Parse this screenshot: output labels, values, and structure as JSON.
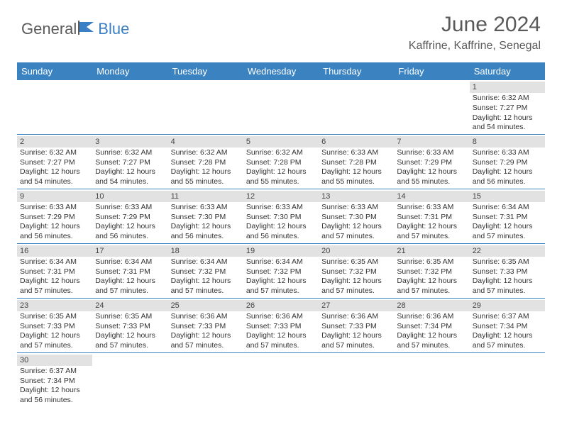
{
  "logo": {
    "part1": "General",
    "part2": "Blue"
  },
  "title": "June 2024",
  "subtitle": "Kaffrine, Kaffrine, Senegal",
  "colors": {
    "header_bg": "#3b83c0",
    "header_text": "#ffffff",
    "daynum_bg": "#e2e2e2",
    "row_border": "#3b83c0",
    "text": "#333333",
    "logo_gray": "#5a5a5a",
    "logo_blue": "#3b7fc4"
  },
  "weekdays": [
    "Sunday",
    "Monday",
    "Tuesday",
    "Wednesday",
    "Thursday",
    "Friday",
    "Saturday"
  ],
  "weeks": [
    [
      {
        "day": "",
        "sunrise": "",
        "sunset": "",
        "daylight": ""
      },
      {
        "day": "",
        "sunrise": "",
        "sunset": "",
        "daylight": ""
      },
      {
        "day": "",
        "sunrise": "",
        "sunset": "",
        "daylight": ""
      },
      {
        "day": "",
        "sunrise": "",
        "sunset": "",
        "daylight": ""
      },
      {
        "day": "",
        "sunrise": "",
        "sunset": "",
        "daylight": ""
      },
      {
        "day": "",
        "sunrise": "",
        "sunset": "",
        "daylight": ""
      },
      {
        "day": "1",
        "sunrise": "Sunrise: 6:32 AM",
        "sunset": "Sunset: 7:27 PM",
        "daylight": "Daylight: 12 hours and 54 minutes."
      }
    ],
    [
      {
        "day": "2",
        "sunrise": "Sunrise: 6:32 AM",
        "sunset": "Sunset: 7:27 PM",
        "daylight": "Daylight: 12 hours and 54 minutes."
      },
      {
        "day": "3",
        "sunrise": "Sunrise: 6:32 AM",
        "sunset": "Sunset: 7:27 PM",
        "daylight": "Daylight: 12 hours and 54 minutes."
      },
      {
        "day": "4",
        "sunrise": "Sunrise: 6:32 AM",
        "sunset": "Sunset: 7:28 PM",
        "daylight": "Daylight: 12 hours and 55 minutes."
      },
      {
        "day": "5",
        "sunrise": "Sunrise: 6:32 AM",
        "sunset": "Sunset: 7:28 PM",
        "daylight": "Daylight: 12 hours and 55 minutes."
      },
      {
        "day": "6",
        "sunrise": "Sunrise: 6:33 AM",
        "sunset": "Sunset: 7:28 PM",
        "daylight": "Daylight: 12 hours and 55 minutes."
      },
      {
        "day": "7",
        "sunrise": "Sunrise: 6:33 AM",
        "sunset": "Sunset: 7:29 PM",
        "daylight": "Daylight: 12 hours and 55 minutes."
      },
      {
        "day": "8",
        "sunrise": "Sunrise: 6:33 AM",
        "sunset": "Sunset: 7:29 PM",
        "daylight": "Daylight: 12 hours and 56 minutes."
      }
    ],
    [
      {
        "day": "9",
        "sunrise": "Sunrise: 6:33 AM",
        "sunset": "Sunset: 7:29 PM",
        "daylight": "Daylight: 12 hours and 56 minutes."
      },
      {
        "day": "10",
        "sunrise": "Sunrise: 6:33 AM",
        "sunset": "Sunset: 7:29 PM",
        "daylight": "Daylight: 12 hours and 56 minutes."
      },
      {
        "day": "11",
        "sunrise": "Sunrise: 6:33 AM",
        "sunset": "Sunset: 7:30 PM",
        "daylight": "Daylight: 12 hours and 56 minutes."
      },
      {
        "day": "12",
        "sunrise": "Sunrise: 6:33 AM",
        "sunset": "Sunset: 7:30 PM",
        "daylight": "Daylight: 12 hours and 56 minutes."
      },
      {
        "day": "13",
        "sunrise": "Sunrise: 6:33 AM",
        "sunset": "Sunset: 7:30 PM",
        "daylight": "Daylight: 12 hours and 57 minutes."
      },
      {
        "day": "14",
        "sunrise": "Sunrise: 6:33 AM",
        "sunset": "Sunset: 7:31 PM",
        "daylight": "Daylight: 12 hours and 57 minutes."
      },
      {
        "day": "15",
        "sunrise": "Sunrise: 6:34 AM",
        "sunset": "Sunset: 7:31 PM",
        "daylight": "Daylight: 12 hours and 57 minutes."
      }
    ],
    [
      {
        "day": "16",
        "sunrise": "Sunrise: 6:34 AM",
        "sunset": "Sunset: 7:31 PM",
        "daylight": "Daylight: 12 hours and 57 minutes."
      },
      {
        "day": "17",
        "sunrise": "Sunrise: 6:34 AM",
        "sunset": "Sunset: 7:31 PM",
        "daylight": "Daylight: 12 hours and 57 minutes."
      },
      {
        "day": "18",
        "sunrise": "Sunrise: 6:34 AM",
        "sunset": "Sunset: 7:32 PM",
        "daylight": "Daylight: 12 hours and 57 minutes."
      },
      {
        "day": "19",
        "sunrise": "Sunrise: 6:34 AM",
        "sunset": "Sunset: 7:32 PM",
        "daylight": "Daylight: 12 hours and 57 minutes."
      },
      {
        "day": "20",
        "sunrise": "Sunrise: 6:35 AM",
        "sunset": "Sunset: 7:32 PM",
        "daylight": "Daylight: 12 hours and 57 minutes."
      },
      {
        "day": "21",
        "sunrise": "Sunrise: 6:35 AM",
        "sunset": "Sunset: 7:32 PM",
        "daylight": "Daylight: 12 hours and 57 minutes."
      },
      {
        "day": "22",
        "sunrise": "Sunrise: 6:35 AM",
        "sunset": "Sunset: 7:33 PM",
        "daylight": "Daylight: 12 hours and 57 minutes."
      }
    ],
    [
      {
        "day": "23",
        "sunrise": "Sunrise: 6:35 AM",
        "sunset": "Sunset: 7:33 PM",
        "daylight": "Daylight: 12 hours and 57 minutes."
      },
      {
        "day": "24",
        "sunrise": "Sunrise: 6:35 AM",
        "sunset": "Sunset: 7:33 PM",
        "daylight": "Daylight: 12 hours and 57 minutes."
      },
      {
        "day": "25",
        "sunrise": "Sunrise: 6:36 AM",
        "sunset": "Sunset: 7:33 PM",
        "daylight": "Daylight: 12 hours and 57 minutes."
      },
      {
        "day": "26",
        "sunrise": "Sunrise: 6:36 AM",
        "sunset": "Sunset: 7:33 PM",
        "daylight": "Daylight: 12 hours and 57 minutes."
      },
      {
        "day": "27",
        "sunrise": "Sunrise: 6:36 AM",
        "sunset": "Sunset: 7:33 PM",
        "daylight": "Daylight: 12 hours and 57 minutes."
      },
      {
        "day": "28",
        "sunrise": "Sunrise: 6:36 AM",
        "sunset": "Sunset: 7:34 PM",
        "daylight": "Daylight: 12 hours and 57 minutes."
      },
      {
        "day": "29",
        "sunrise": "Sunrise: 6:37 AM",
        "sunset": "Sunset: 7:34 PM",
        "daylight": "Daylight: 12 hours and 57 minutes."
      }
    ],
    [
      {
        "day": "30",
        "sunrise": "Sunrise: 6:37 AM",
        "sunset": "Sunset: 7:34 PM",
        "daylight": "Daylight: 12 hours and 56 minutes."
      },
      {
        "day": "",
        "sunrise": "",
        "sunset": "",
        "daylight": ""
      },
      {
        "day": "",
        "sunrise": "",
        "sunset": "",
        "daylight": ""
      },
      {
        "day": "",
        "sunrise": "",
        "sunset": "",
        "daylight": ""
      },
      {
        "day": "",
        "sunrise": "",
        "sunset": "",
        "daylight": ""
      },
      {
        "day": "",
        "sunrise": "",
        "sunset": "",
        "daylight": ""
      },
      {
        "day": "",
        "sunrise": "",
        "sunset": "",
        "daylight": ""
      }
    ]
  ]
}
